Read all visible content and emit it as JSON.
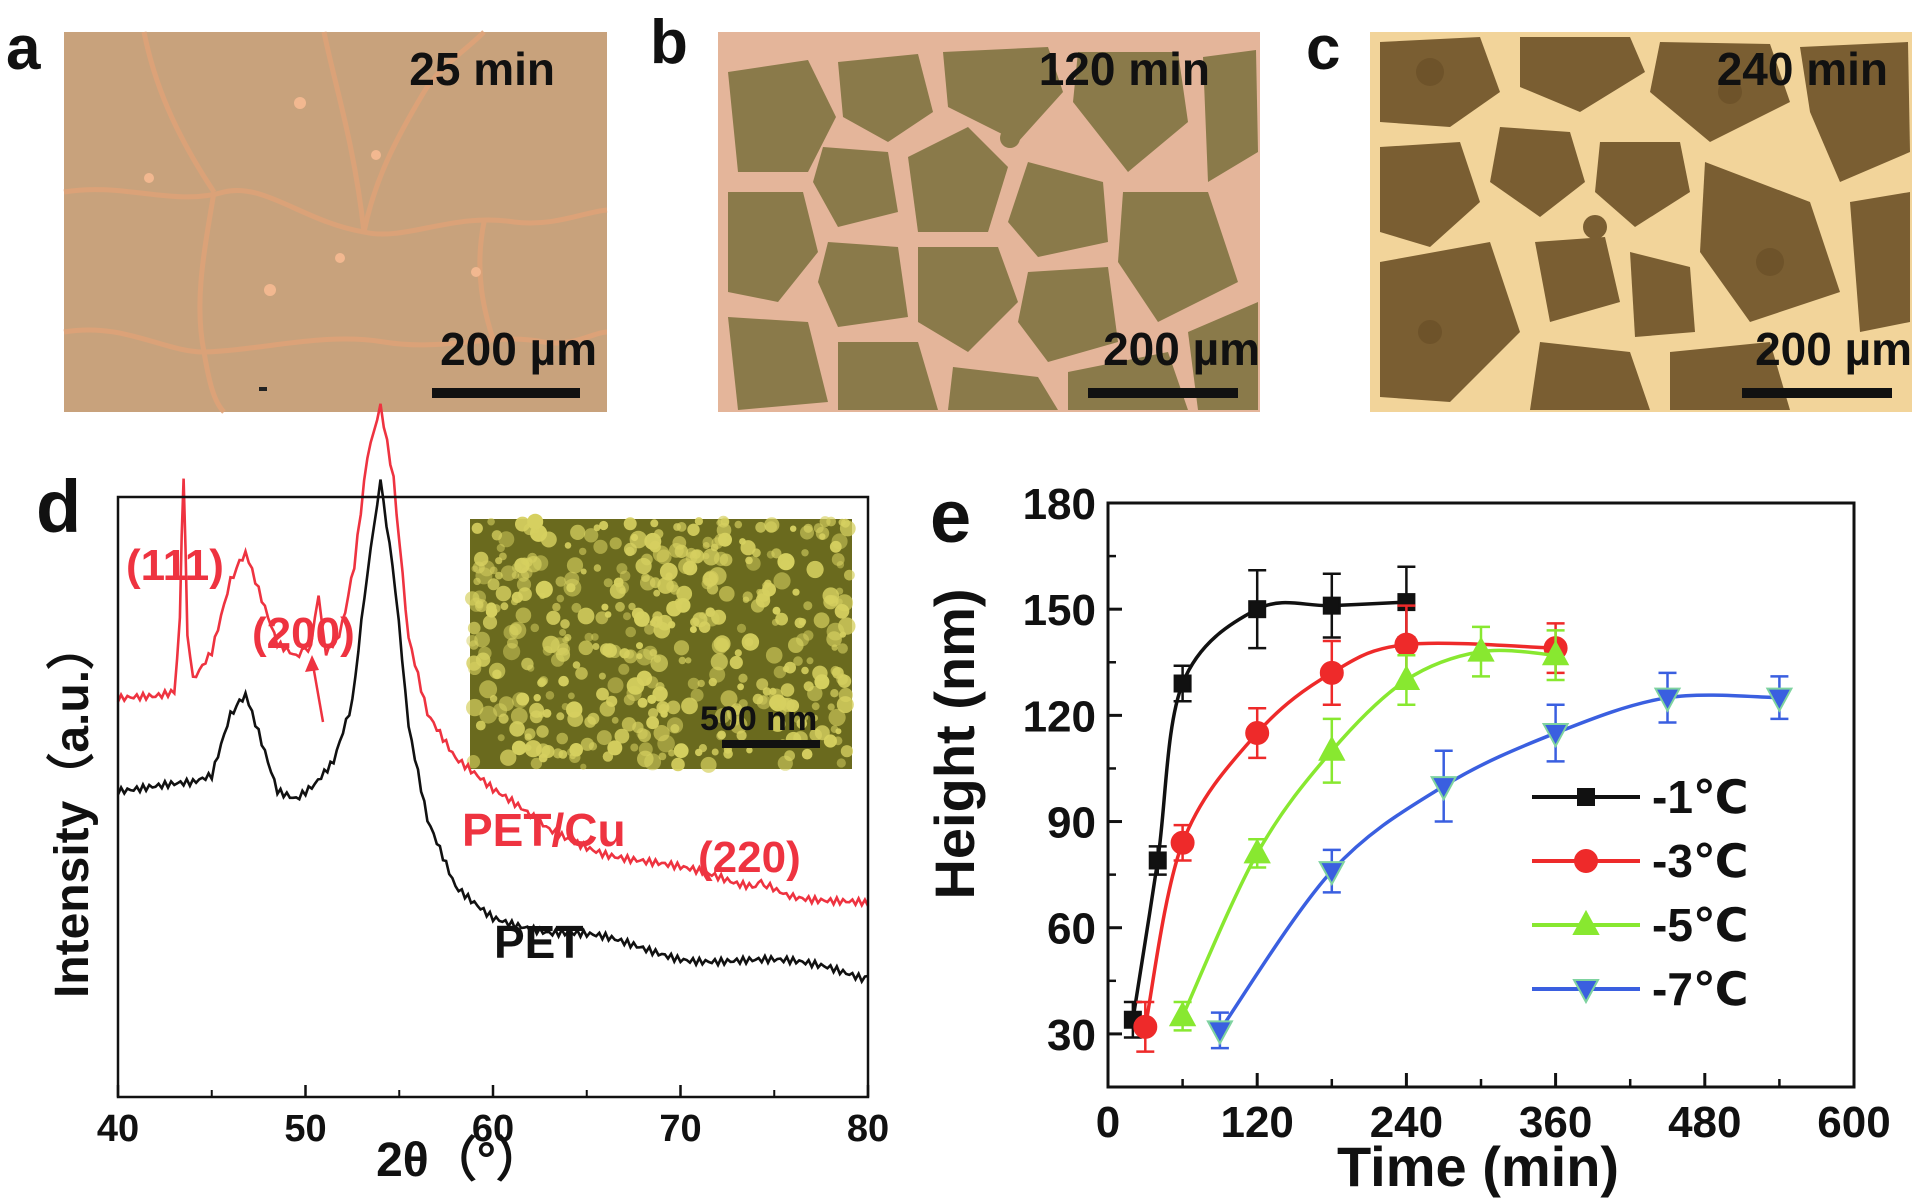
{
  "panels": {
    "a": {
      "letter": "a",
      "time": "25 min",
      "scale": "200 µm"
    },
    "b": {
      "letter": "b",
      "time": "120 min",
      "scale": "200 µm"
    },
    "c": {
      "letter": "c",
      "time": "240 min",
      "scale": "200 µm"
    },
    "d": {
      "letter": "d"
    },
    "e": {
      "letter": "e"
    }
  },
  "colors": {
    "panel_a_bg": "#c8a27c",
    "panel_a_line": "#e0a070",
    "panel_b_bg": "#8a7a48",
    "panel_b_line": "#e8b89a",
    "panel_c_bg": "#7a5e32",
    "panel_c_line": "#f2d49a",
    "inset_bg": "#6a6a1e",
    "inset_grain": "#d6d060"
  },
  "chart_data": [
    {
      "type": "line",
      "panel": "d",
      "xlabel": "2θ（°）",
      "ylabel": "Intensity（a.u.）",
      "xlim": [
        40,
        80
      ],
      "xticks": [
        40,
        50,
        60,
        70,
        80
      ],
      "y_axis": "unlabeled, relative intensity",
      "series": [
        {
          "name": "PET/Cu",
          "color": "#ee3340",
          "x": [
            40,
            42,
            43,
            43.3,
            43.5,
            43.7,
            44,
            45,
            46,
            46.8,
            47.5,
            48.5,
            49.5,
            50.3,
            50.7,
            51.1,
            51.8,
            52.6,
            53.3,
            54,
            54.7,
            55.5,
            56.5,
            58,
            60,
            63,
            66,
            70,
            73,
            74,
            74.3,
            74.6,
            76,
            78,
            80
          ],
          "y": [
            42,
            43,
            44,
            55,
            75,
            52,
            46,
            50,
            60,
            63,
            58,
            50,
            48,
            50,
            57,
            50,
            52,
            62,
            78,
            85,
            74,
            52,
            41,
            34,
            29,
            24,
            21,
            18,
            16,
            16,
            17,
            16,
            15,
            14,
            13
          ]
        },
        {
          "name": "PET",
          "color": "#111111",
          "x": [
            40,
            42,
            44,
            45,
            46,
            46.8,
            47.5,
            48.5,
            49.5,
            50.5,
            51.5,
            52.5,
            53.3,
            54,
            54.8,
            55.5,
            56.5,
            58,
            60,
            63,
            66,
            70,
            74,
            78,
            80
          ],
          "y": [
            30,
            30,
            30,
            31,
            40,
            44,
            38,
            30,
            29,
            31,
            34,
            42,
            60,
            73,
            58,
            38,
            25,
            16,
            12,
            9,
            8,
            6,
            5,
            4,
            3
          ]
        }
      ],
      "annotations": [
        {
          "text": "(111)",
          "color": "#ee3340"
        },
        {
          "text": "(200)",
          "color": "#ee3340"
        },
        {
          "text": "(220)",
          "color": "#ee3340"
        },
        {
          "text": "PET/Cu",
          "color": "#ee3340"
        },
        {
          "text": "PET",
          "color": "#111111"
        }
      ],
      "inset": {
        "scale": "500 nm"
      }
    },
    {
      "type": "line",
      "panel": "e",
      "xlabel": "Time (min)",
      "ylabel": "Height (nm)",
      "xlim": [
        0,
        600
      ],
      "ylim": [
        15,
        180
      ],
      "xticks": [
        0,
        120,
        240,
        360,
        480,
        600
      ],
      "yticks": [
        30,
        60,
        90,
        120,
        150,
        180
      ],
      "legend": "lower-right",
      "series": [
        {
          "name": "-1℃",
          "color": "#111111",
          "marker": "square",
          "x": [
            20,
            40,
            60,
            120,
            180,
            240
          ],
          "y": [
            34,
            79,
            129,
            150,
            151,
            152
          ],
          "err": [
            5,
            4,
            5,
            11,
            9,
            10
          ]
        },
        {
          "name": "-3℃",
          "color": "#ee2a2a",
          "marker": "circle",
          "x": [
            30,
            60,
            120,
            180,
            240,
            360
          ],
          "y": [
            32,
            84,
            115,
            132,
            140,
            139
          ],
          "err": [
            7,
            5,
            7,
            9,
            11,
            7
          ]
        },
        {
          "name": "-5℃",
          "color": "#88e830",
          "marker": "triangle-up",
          "x": [
            60,
            120,
            180,
            240,
            300,
            360
          ],
          "y": [
            35,
            81,
            110,
            130,
            138,
            137
          ],
          "err": [
            4,
            4,
            9,
            7,
            7,
            7
          ]
        },
        {
          "name": "-7℃",
          "color": "#3a5fe0",
          "marker": "triangle-down",
          "x": [
            90,
            180,
            270,
            360,
            450,
            540
          ],
          "y": [
            31,
            76,
            100,
            115,
            125,
            125
          ],
          "err": [
            5,
            6,
            10,
            8,
            7,
            6
          ]
        }
      ]
    }
  ]
}
